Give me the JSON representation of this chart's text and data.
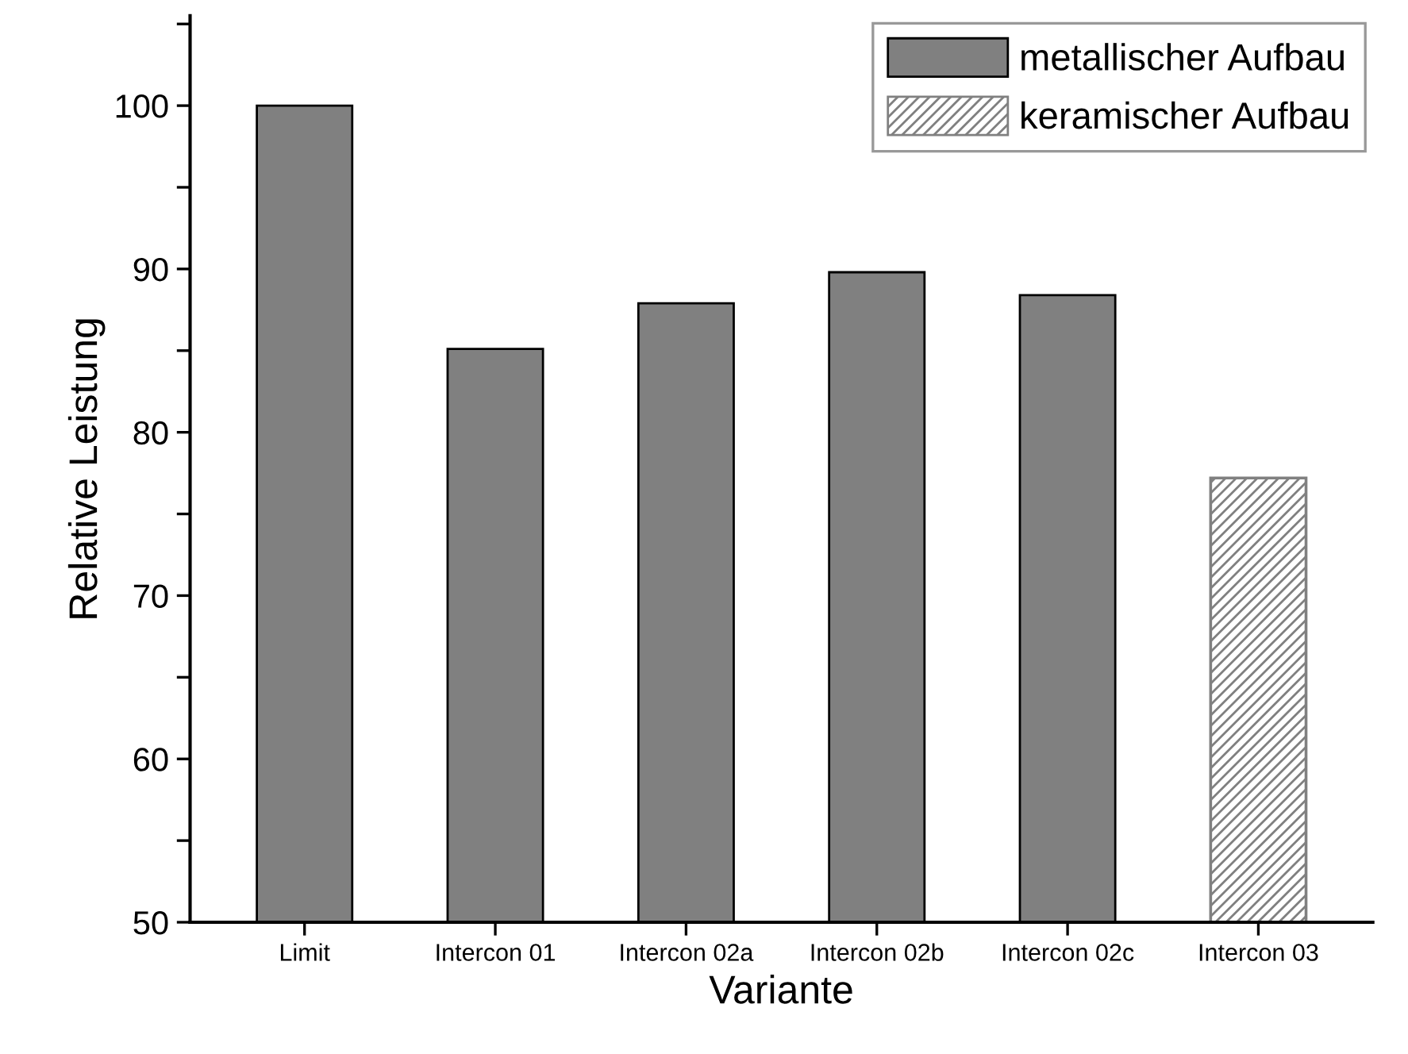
{
  "chart_data": {
    "type": "bar",
    "xlabel": "Variante",
    "ylabel": "Relative Leistung",
    "categories": [
      "Limit",
      "Intercon 01",
      "Intercon 02a",
      "Intercon 02b",
      "Intercon 02c",
      "Intercon 03"
    ],
    "series": [
      {
        "name": "metallischer Aufbau",
        "color": "#808080",
        "values": [
          100,
          85.1,
          87.9,
          89.8,
          88.4,
          null
        ]
      },
      {
        "name": "keramischer Aufbau",
        "color": "#808080",
        "values": [
          null,
          null,
          null,
          null,
          null,
          77.2
        ]
      }
    ],
    "ylim": [
      50,
      105.5
    ],
    "yticks": [
      50,
      {
        "value": 55,
        "label": null
      },
      60,
      {
        "value": 65,
        "label": null
      },
      70,
      {
        "value": 75,
        "label": null
      },
      80,
      {
        "value": 85,
        "label": null
      },
      90,
      {
        "value": 95,
        "label": null
      },
      100,
      {
        "value": 105,
        "label": null
      }
    ],
    "grid": false,
    "legend": "top right"
  }
}
